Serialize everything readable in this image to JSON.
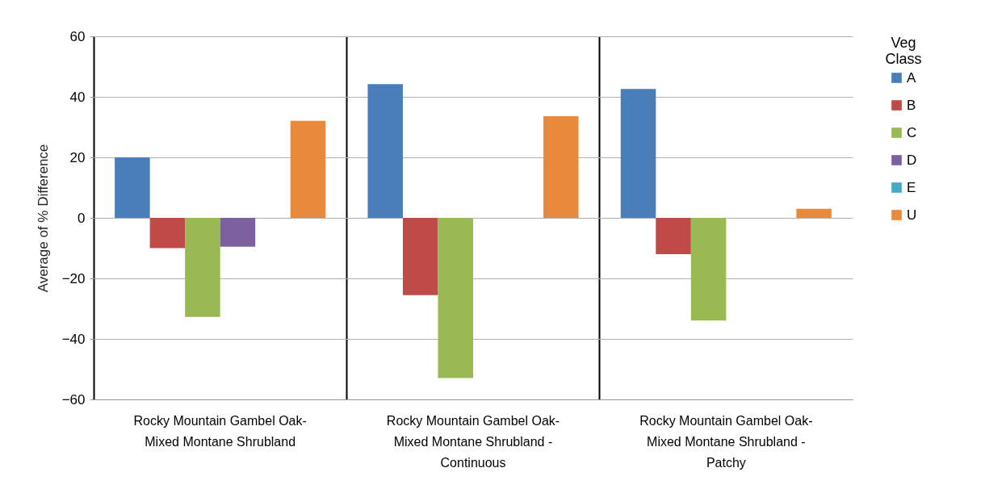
{
  "chart_data": {
    "type": "bar",
    "ylabel": "Average of % Difference",
    "legend_title": "Veg Class",
    "categories": [
      "Rocky Mountain Gambel Oak-Mixed Montane Shrubland",
      "Rocky Mountain Gambel Oak-Mixed Montane Shrubland  - Continuous",
      "Rocky Mountain Gambel Oak-Mixed Montane Shrubland - Patchy"
    ],
    "series": [
      {
        "name": "A",
        "color": "#4a7ebb",
        "values": [
          20,
          44.2,
          42.6
        ]
      },
      {
        "name": "B",
        "color": "#be4b48",
        "values": [
          -10,
          -25.5,
          -12
        ]
      },
      {
        "name": "C",
        "color": "#98b954",
        "values": [
          -32.7,
          -52.9,
          -33.9
        ]
      },
      {
        "name": "D",
        "color": "#7d60a0",
        "values": [
          -9.5,
          null,
          null
        ]
      },
      {
        "name": "E",
        "color": "#46aac5",
        "values": [
          null,
          null,
          null
        ]
      },
      {
        "name": "U",
        "color": "#e8893c",
        "values": [
          32.1,
          33.6,
          3
        ]
      }
    ],
    "ylim": [
      -60,
      60
    ],
    "yticks": [
      -60,
      -40,
      -20,
      0,
      20,
      40,
      60
    ],
    "grid": "y",
    "legend": "right"
  }
}
